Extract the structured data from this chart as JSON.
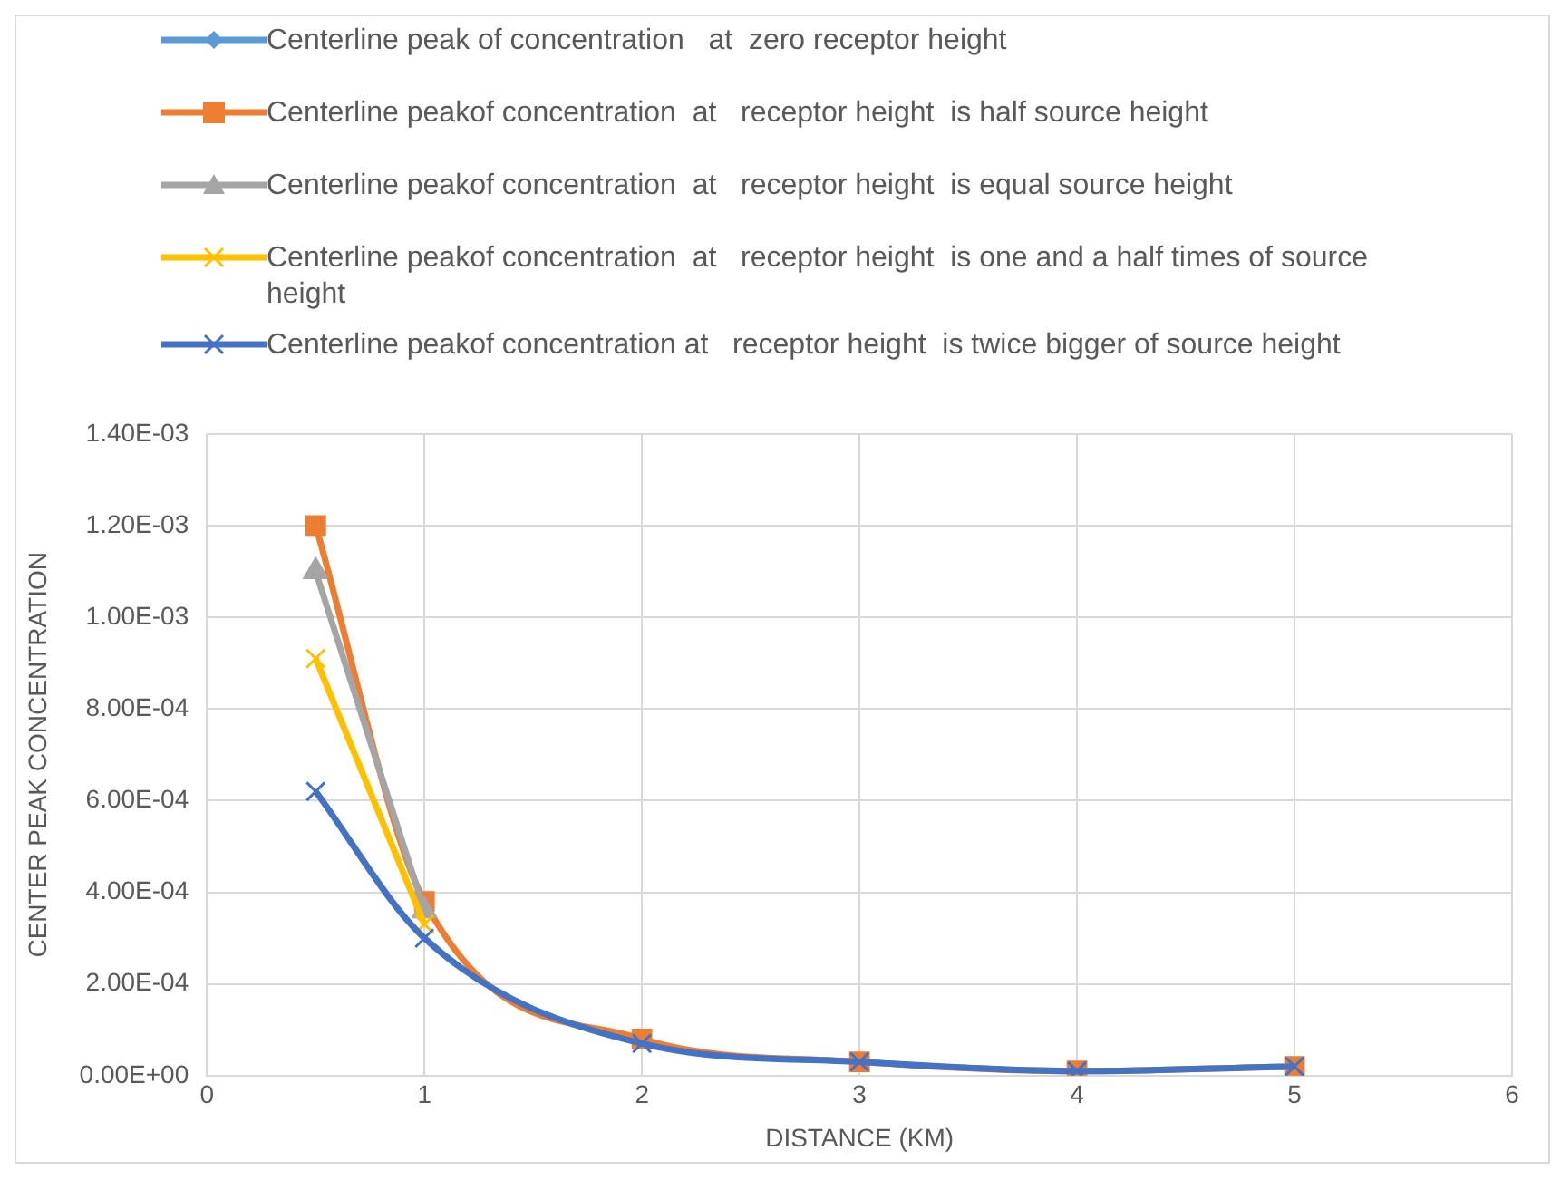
{
  "chart_data": {
    "type": "line",
    "xlabel": "DISTANCE (KM)",
    "ylabel": "CENTER PEAK CONCENTRATION",
    "x": [
      0.5,
      1,
      2,
      3,
      4,
      5
    ],
    "xlim": [
      0,
      6
    ],
    "xticks": [
      0,
      1,
      2,
      3,
      4,
      5,
      6
    ],
    "ylim": [
      0,
      0.0014
    ],
    "yticks": [
      {
        "value": 0,
        "label": "0.00E+00"
      },
      {
        "value": 0.0002,
        "label": "2.00E-04"
      },
      {
        "value": 0.0004,
        "label": "4.00E-04"
      },
      {
        "value": 0.0006,
        "label": "6.00E-04"
      },
      {
        "value": 0.0008,
        "label": "8.00E-04"
      },
      {
        "value": 0.001,
        "label": "1.00E-03"
      },
      {
        "value": 0.0012,
        "label": "1.20E-03"
      },
      {
        "value": 0.0014,
        "label": "1.40E-03"
      }
    ],
    "grid": true,
    "legend": "top",
    "series": [
      {
        "name": "Centerline peak of concentration   at  zero receptor height",
        "color": "#5b9bd5",
        "marker": "diamond",
        "values": [
          null,
          null,
          null,
          null,
          null,
          null
        ]
      },
      {
        "name": "Centerline peakof concentration  at   receptor height  is half source height",
        "color": "#ed7d31",
        "marker": "square",
        "values": [
          0.0012,
          0.00038,
          8e-05,
          3e-05,
          1e-05,
          2e-05
        ]
      },
      {
        "name": "Centerline peakof concentration  at   receptor height  is equal source height",
        "color": "#a5a5a5",
        "marker": "triangle",
        "values": [
          0.0011,
          0.00036,
          null,
          null,
          null,
          null
        ]
      },
      {
        "name": "Centerline peakof concentration  at   receptor height  is one and a half times of source height",
        "color": "#ffc000",
        "marker": "cross",
        "values": [
          0.00091,
          0.00033,
          null,
          null,
          null,
          null
        ]
      },
      {
        "name": "Centerline peakof concentration at   receptor height  is twice bigger of source height",
        "color": "#4472c4",
        "marker": "cross",
        "values": [
          0.00062,
          0.0003,
          7e-05,
          3e-05,
          1e-05,
          2e-05
        ]
      }
    ]
  }
}
